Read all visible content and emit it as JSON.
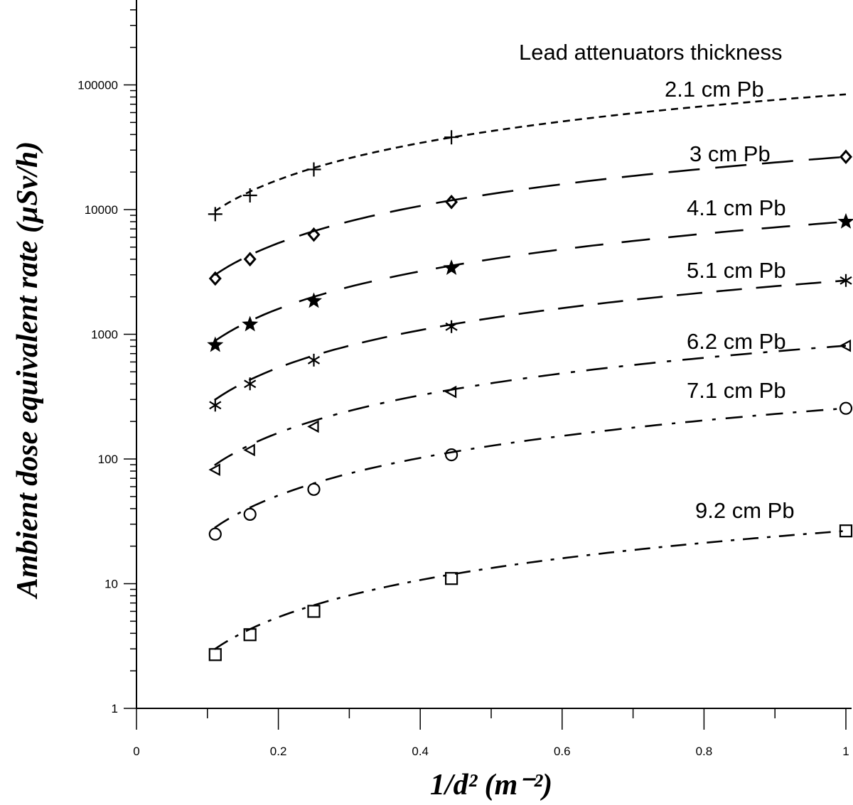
{
  "chart_data": {
    "type": "scatter",
    "title": "",
    "xlabel": "1/d² (m⁻²)",
    "ylabel": "Ambient dose equivalent rate (µSv/h)",
    "yscale": "log",
    "xlim": [
      0,
      1
    ],
    "ylim": [
      1,
      500000
    ],
    "x_ticks": [
      "0",
      "0.2",
      "0.4",
      "0.6",
      "0.8",
      "1"
    ],
    "y_ticks": [
      "1",
      "10",
      "100",
      "1000",
      "10000",
      "100000"
    ],
    "legend_title": "Lead attenuators thickness",
    "series": [
      {
        "name": "2.1 cm Pb",
        "marker": "plus",
        "dash": "10,7",
        "x": [
          0.111,
          0.16,
          0.25,
          0.444
        ],
        "y": [
          9200,
          13000,
          21000,
          38000
        ],
        "fit": {
          "from": 0.11,
          "to": 1.0,
          "y_at_1": 84000,
          "exponent": 0.98
        }
      },
      {
        "name": "3 cm Pb",
        "marker": "diamond",
        "dash": "44,22",
        "x": [
          0.111,
          0.16,
          0.25,
          0.444,
          1.0
        ],
        "y": [
          2800,
          4000,
          6300,
          11500,
          26500
        ],
        "fit": {
          "from": 0.11,
          "to": 1.0,
          "y_at_1": 26500,
          "exponent": 0.99
        }
      },
      {
        "name": "4.1 cm Pb",
        "marker": "star",
        "dash": "40,26",
        "x": [
          0.111,
          0.16,
          0.25,
          0.444,
          1.0
        ],
        "y": [
          820,
          1200,
          1850,
          3400,
          8000
        ],
        "fit": {
          "from": 0.11,
          "to": 1.0,
          "y_at_1": 8000,
          "exponent": 1.0
        }
      },
      {
        "name": "5.1 cm Pb",
        "marker": "asterisk",
        "dash": "36,20",
        "x": [
          0.111,
          0.16,
          0.25,
          0.444,
          1.0
        ],
        "y": [
          270,
          400,
          620,
          1150,
          2700
        ],
        "fit": {
          "from": 0.11,
          "to": 1.0,
          "y_at_1": 2700,
          "exponent": 1.0
        }
      },
      {
        "name": "6.2 cm Pb",
        "marker": "triangle-left",
        "dash": "30,16,6,16",
        "x": [
          0.111,
          0.16,
          0.25,
          0.444,
          1.0
        ],
        "y": [
          82,
          118,
          182,
          345,
          810
        ],
        "fit": {
          "from": 0.11,
          "to": 1.0,
          "y_at_1": 810,
          "exponent": 1.0
        }
      },
      {
        "name": "7.1 cm Pb",
        "marker": "circle",
        "dash": "24,14,5,14",
        "x": [
          0.111,
          0.16,
          0.25,
          0.444,
          1.0
        ],
        "y": [
          25,
          36,
          57,
          108,
          255
        ],
        "fit": {
          "from": 0.11,
          "to": 1.0,
          "y_at_1": 255,
          "exponent": 1.0
        }
      },
      {
        "name": "9.2 cm Pb",
        "marker": "square",
        "dash": "22,12,5,12",
        "x": [
          0.111,
          0.16,
          0.25,
          0.444,
          1.0
        ],
        "y": [
          2.7,
          3.9,
          6.0,
          11.0,
          26.5
        ],
        "fit": {
          "from": 0.11,
          "to": 1.0,
          "y_at_1": 26.5,
          "exponent": 0.99
        }
      }
    ]
  }
}
